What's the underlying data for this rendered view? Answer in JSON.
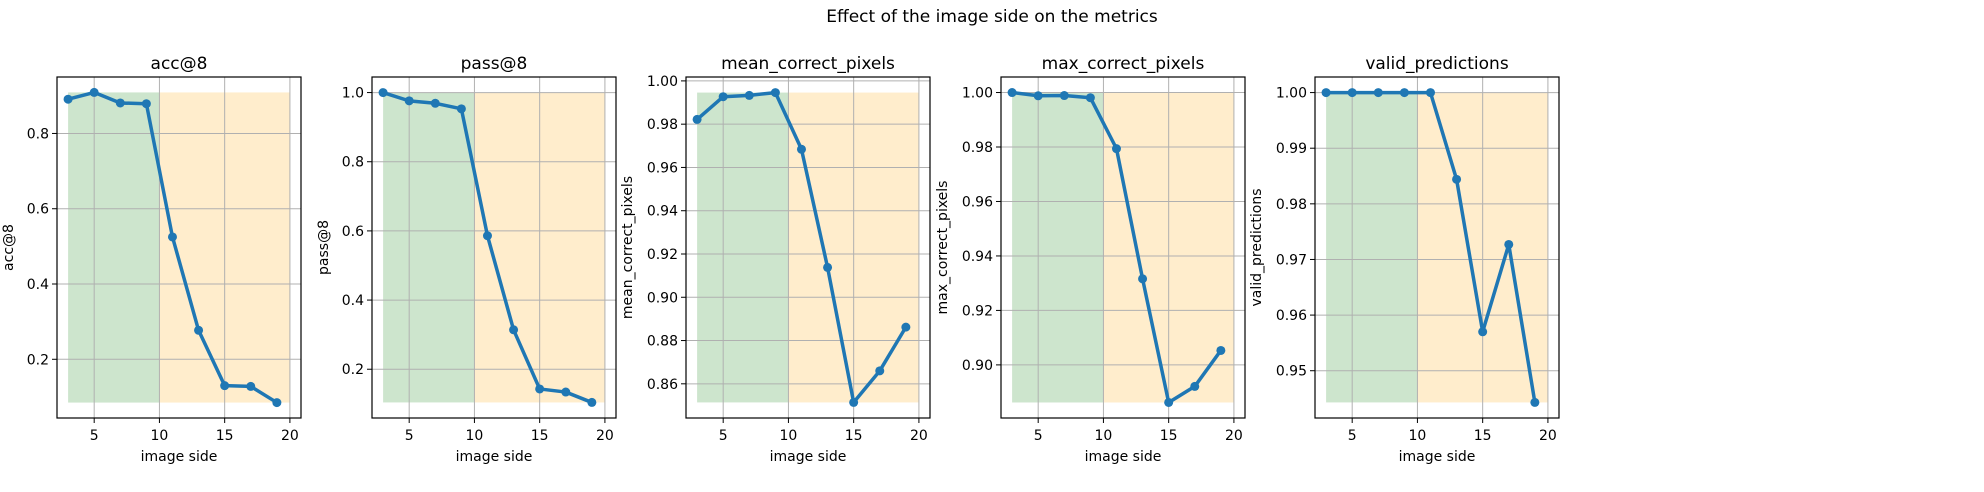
{
  "figure": {
    "suptitle": "Effect of the image side on the metrics"
  },
  "colors": {
    "line": "#1f77b4",
    "green_region": "#cde5cd",
    "orange_region": "#ffedcc",
    "grid": "#b0b0b0"
  },
  "chart_data": [
    {
      "type": "line",
      "title": "acc@8",
      "xlabel": "image side",
      "ylabel": "acc@8",
      "x": [
        3,
        5,
        7,
        9,
        11,
        13,
        15,
        17,
        19
      ],
      "values": [
        0.891,
        0.909,
        0.881,
        0.879,
        0.525,
        0.277,
        0.13,
        0.128,
        0.085
      ],
      "xlim": [
        2.15,
        20.85
      ],
      "ylim": [
        0.044,
        0.95
      ],
      "xticks": [
        5,
        10,
        15,
        20
      ],
      "xtick_labels": [
        "5",
        "10",
        "15",
        "20"
      ],
      "yticks": [
        0.2,
        0.4,
        0.6,
        0.8
      ],
      "ytick_labels": [
        "0.2",
        "0.4",
        "0.6",
        "0.8"
      ],
      "regions": [
        {
          "from": 3,
          "to": 10,
          "color": "green"
        },
        {
          "from": 10,
          "to": 20,
          "color": "orange"
        }
      ],
      "grid": true
    },
    {
      "type": "line",
      "title": "pass@8",
      "xlabel": "image side",
      "ylabel": "pass@8",
      "x": [
        3,
        5,
        7,
        9,
        11,
        13,
        15,
        17,
        19
      ],
      "values": [
        1.0,
        0.976,
        0.969,
        0.953,
        0.586,
        0.314,
        0.143,
        0.134,
        0.104
      ],
      "xlim": [
        2.15,
        20.85
      ],
      "ylim": [
        0.059,
        1.045
      ],
      "xticks": [
        5,
        10,
        15,
        20
      ],
      "xtick_labels": [
        "5",
        "10",
        "15",
        "20"
      ],
      "yticks": [
        0.2,
        0.4,
        0.6,
        0.8,
        1.0
      ],
      "ytick_labels": [
        "0.2",
        "0.4",
        "0.6",
        "0.8",
        "1.0"
      ],
      "regions": [
        {
          "from": 3,
          "to": 10,
          "color": "green"
        },
        {
          "from": 10,
          "to": 20,
          "color": "orange"
        }
      ],
      "grid": true
    },
    {
      "type": "line",
      "title": "mean_correct_pixels",
      "xlabel": "image side",
      "ylabel": "mean_correct_pixels",
      "x": [
        3,
        5,
        7,
        9,
        11,
        13,
        15,
        17,
        19
      ],
      "values": [
        0.9822,
        0.9927,
        0.9933,
        0.9946,
        0.9684,
        0.9138,
        0.8514,
        0.866,
        0.8862
      ],
      "xlim": [
        2.15,
        20.85
      ],
      "ylim": [
        0.8442,
        1.0018
      ],
      "xticks": [
        5,
        10,
        15,
        20
      ],
      "xtick_labels": [
        "5",
        "10",
        "15",
        "20"
      ],
      "yticks": [
        0.86,
        0.88,
        0.9,
        0.92,
        0.94,
        0.96,
        0.98,
        1.0
      ],
      "ytick_labels": [
        "0.86",
        "0.88",
        "0.90",
        "0.92",
        "0.94",
        "0.96",
        "0.98",
        "1.00"
      ],
      "regions": [
        {
          "from": 3,
          "to": 10,
          "color": "green"
        },
        {
          "from": 10,
          "to": 20,
          "color": "orange"
        }
      ],
      "grid": true
    },
    {
      "type": "line",
      "title": "max_correct_pixels",
      "xlabel": "image side",
      "ylabel": "max_correct_pixels",
      "x": [
        3,
        5,
        7,
        9,
        11,
        13,
        15,
        17,
        19
      ],
      "values": [
        1.0,
        0.9988,
        0.9989,
        0.9981,
        0.9794,
        0.9316,
        0.8862,
        0.8921,
        0.9053
      ],
      "xlim": [
        2.15,
        20.85
      ],
      "ylim": [
        0.8805,
        1.0057
      ],
      "xticks": [
        5,
        10,
        15,
        20
      ],
      "xtick_labels": [
        "5",
        "10",
        "15",
        "20"
      ],
      "yticks": [
        0.9,
        0.92,
        0.94,
        0.96,
        0.98,
        1.0
      ],
      "ytick_labels": [
        "0.90",
        "0.92",
        "0.94",
        "0.96",
        "0.98",
        "1.00"
      ],
      "regions": [
        {
          "from": 3,
          "to": 10,
          "color": "green"
        },
        {
          "from": 10,
          "to": 20,
          "color": "orange"
        }
      ],
      "grid": true
    },
    {
      "type": "line",
      "title": "valid_predictions",
      "xlabel": "image side",
      "ylabel": "valid_predictions",
      "x": [
        3,
        5,
        7,
        9,
        11,
        13,
        15,
        17,
        19
      ],
      "values": [
        1.0,
        1.0,
        1.0,
        1.0,
        1.0,
        0.9844,
        0.957,
        0.9727,
        0.9443
      ],
      "xlim": [
        2.15,
        20.85
      ],
      "ylim": [
        0.9415,
        1.0028
      ],
      "xticks": [
        5,
        10,
        15,
        20
      ],
      "xtick_labels": [
        "5",
        "10",
        "15",
        "20"
      ],
      "yticks": [
        0.95,
        0.96,
        0.97,
        0.98,
        0.99,
        1.0
      ],
      "ytick_labels": [
        "0.95",
        "0.96",
        "0.97",
        "0.98",
        "0.99",
        "1.00"
      ],
      "regions": [
        {
          "from": 3,
          "to": 10,
          "color": "green"
        },
        {
          "from": 10,
          "to": 20,
          "color": "orange"
        }
      ],
      "grid": true
    }
  ]
}
